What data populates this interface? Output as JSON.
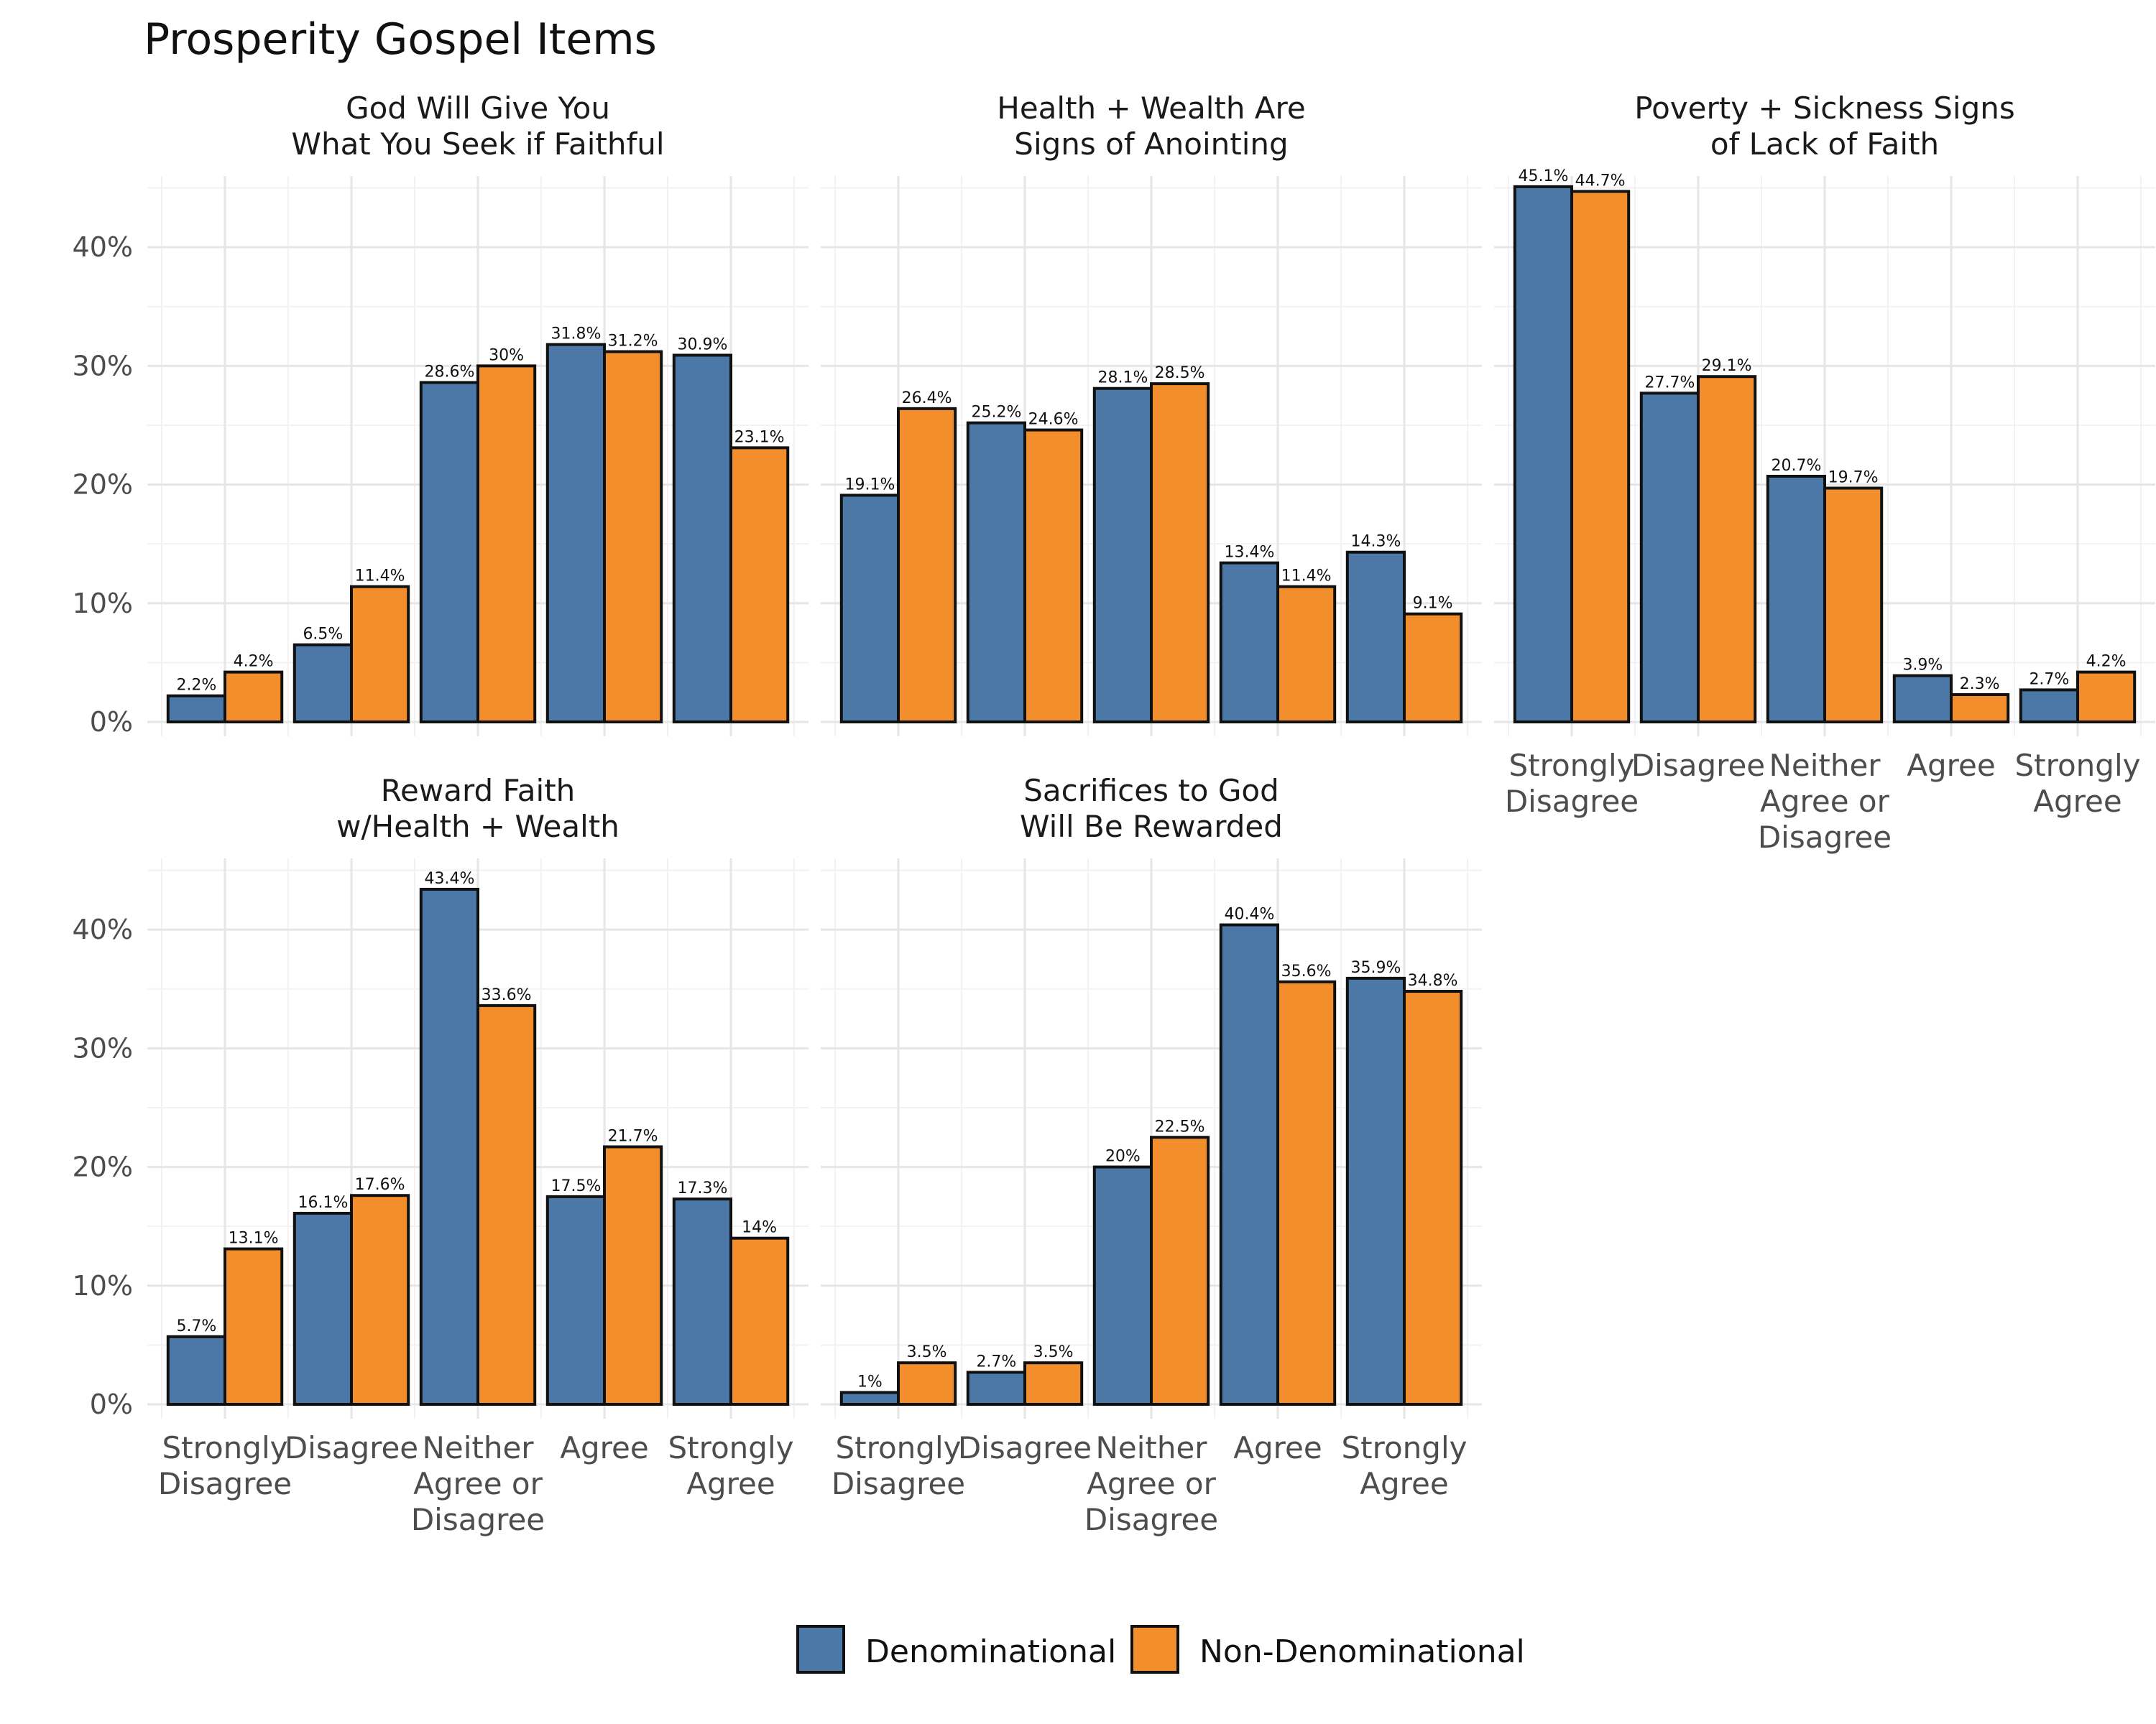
{
  "chart_data": {
    "type": "bar",
    "title": "Prosperity Gospel Items",
    "xlabel": "",
    "ylabel": "",
    "ylim": [
      0,
      0.46
    ],
    "y_ticks": [
      "0%",
      "10%",
      "20%",
      "30%",
      "40%"
    ],
    "grid": true,
    "legend_position": "bottom",
    "categories": [
      [
        "Strongly",
        "Disagree"
      ],
      [
        "Disagree"
      ],
      [
        "Neither",
        "Agree or",
        "Disagree"
      ],
      [
        "Agree"
      ],
      [
        "Strongly",
        "Agree"
      ]
    ],
    "colors": {
      "Denominational": "#4c78a8",
      "Non-Denominational": "#f28e2b"
    },
    "legend": [
      "Denominational",
      "Non-Denominational"
    ],
    "panels": [
      {
        "title": [
          "God Will Give You",
          "What You Seek if Faithful"
        ],
        "series": [
          {
            "name": "Denominational",
            "values": [
              2.2,
              6.5,
              28.6,
              31.8,
              30.9
            ],
            "labels": [
              "2.2%",
              "6.5%",
              "28.6%",
              "31.8%",
              "30.9%"
            ]
          },
          {
            "name": "Non-Denominational",
            "values": [
              4.2,
              11.4,
              30,
              31.2,
              23.1
            ],
            "labels": [
              "4.2%",
              "11.4%",
              "30%",
              "31.2%",
              "23.1%"
            ]
          }
        ]
      },
      {
        "title": [
          "Health + Wealth Are",
          "Signs of Anointing"
        ],
        "series": [
          {
            "name": "Denominational",
            "values": [
              19.1,
              25.2,
              28.1,
              13.4,
              14.3
            ],
            "labels": [
              "19.1%",
              "25.2%",
              "28.1%",
              "13.4%",
              "14.3%"
            ]
          },
          {
            "name": "Non-Denominational",
            "values": [
              26.4,
              24.6,
              28.5,
              11.4,
              9.1
            ],
            "labels": [
              "26.4%",
              "24.6%",
              "28.5%",
              "11.4%",
              "9.1%"
            ]
          }
        ]
      },
      {
        "title": [
          "Poverty + Sickness Signs",
          "of Lack of Faith"
        ],
        "series": [
          {
            "name": "Denominational",
            "values": [
              45.1,
              27.7,
              20.7,
              3.9,
              2.7
            ],
            "labels": [
              "45.1%",
              "27.7%",
              "20.7%",
              "3.9%",
              "2.7%"
            ]
          },
          {
            "name": "Non-Denominational",
            "values": [
              44.7,
              29.1,
              19.7,
              2.3,
              4.2
            ],
            "labels": [
              "44.7%",
              "29.1%",
              "19.7%",
              "2.3%",
              "4.2%"
            ]
          }
        ]
      },
      {
        "title": [
          "Reward Faith",
          "w/Health + Wealth"
        ],
        "series": [
          {
            "name": "Denominational",
            "values": [
              5.7,
              16.1,
              43.4,
              17.5,
              17.3
            ],
            "labels": [
              "5.7%",
              "16.1%",
              "43.4%",
              "17.5%",
              "17.3%"
            ]
          },
          {
            "name": "Non-Denominational",
            "values": [
              13.1,
              17.6,
              33.6,
              21.7,
              14
            ],
            "labels": [
              "13.1%",
              "17.6%",
              "33.6%",
              "21.7%",
              "14%"
            ]
          }
        ]
      },
      {
        "title": [
          "Sacrifices to God",
          "Will Be Rewarded"
        ],
        "series": [
          {
            "name": "Denominational",
            "values": [
              1,
              2.7,
              20,
              40.4,
              35.9
            ],
            "labels": [
              "1%",
              "2.7%",
              "20%",
              "40.4%",
              "35.9%"
            ]
          },
          {
            "name": "Non-Denominational",
            "values": [
              3.5,
              3.5,
              22.5,
              35.6,
              34.8
            ],
            "labels": [
              "3.5%",
              "3.5%",
              "22.5%",
              "35.6%",
              "34.8%"
            ]
          }
        ]
      }
    ]
  }
}
